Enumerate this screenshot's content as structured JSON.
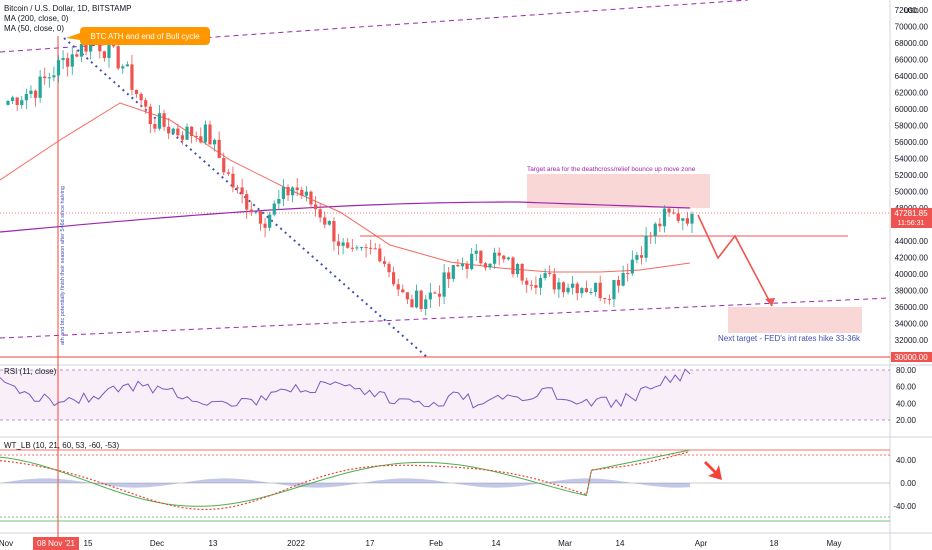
{
  "header": {
    "title": "Bitcoin / U.S. Dollar, 1D, BITSTAMP",
    "ma200": "MA (200, close, 0)",
    "ma50": "MA (50, close, 0)"
  },
  "price_axis": {
    "currency": "USD",
    "ticks": [
      "72000.00",
      "70000.00",
      "68000.00",
      "66000.00",
      "64000.00",
      "62000.00",
      "60000.00",
      "58000.00",
      "56000.00",
      "54000.00",
      "52000.00",
      "50000.00",
      "48000.00",
      "46000.00",
      "44000.00",
      "42000.00",
      "40000.00",
      "38000.00",
      "36000.00",
      "34000.00",
      "32000.00"
    ],
    "current_price": "47281.85",
    "countdown": "11:56:31",
    "level_label": "30000.00"
  },
  "time_axis": {
    "ticks": [
      "Nov",
      "15",
      "Dec",
      "13",
      "2022",
      "17",
      "Feb",
      "14",
      "Mar",
      "14",
      "Apr",
      "18",
      "May"
    ],
    "highlight": "08 Nov '21"
  },
  "annotations": {
    "ath_callout": "BTC ATH and end of Bull cycle",
    "target_zone": "Target area for the deathcross/relief bounce up move zone",
    "next_target": "Next target - FED's int rates hike 33-36k",
    "vertical_note": "ath and btc potentially finish their season after 546d since halving"
  },
  "rsi": {
    "title": "RSI (11, close)",
    "ticks": [
      "80.00",
      "60.00",
      "40.00",
      "20.00"
    ]
  },
  "wt": {
    "title": "WT_LB (10, 21, 60, 53, -60, -53)",
    "ticks": [
      "40.00",
      "0.00",
      "-40.00"
    ]
  },
  "colors": {
    "up": "#26a69a",
    "down": "#ef5350",
    "ma200": "#9c27b0",
    "ma50": "#f44336",
    "trend": "#3f51b5",
    "callout": "#ff9800",
    "zone": "#f8c6c6"
  },
  "chart_data": {
    "type": "candlestick",
    "title": "Bitcoin / U.S. Dollar, 1D, BITSTAMP",
    "ylim": [
      29000,
      73000
    ],
    "weekly_closes": [
      {
        "period": "Nov-08",
        "close": 65500
      },
      {
        "period": "Nov-15",
        "close": 58700
      },
      {
        "period": "Nov-22",
        "close": 57200
      },
      {
        "period": "Nov-29",
        "close": 57000
      },
      {
        "period": "Dec-06",
        "close": 50000
      },
      {
        "period": "Dec-13",
        "close": 46700
      },
      {
        "period": "Dec-20",
        "close": 50700
      },
      {
        "period": "Dec-27",
        "close": 47300
      },
      {
        "period": "Jan-03",
        "close": 41800
      },
      {
        "period": "Jan-10",
        "close": 43100
      },
      {
        "period": "Jan-17",
        "close": 36300
      },
      {
        "period": "Jan-24",
        "close": 37800
      },
      {
        "period": "Jan-31",
        "close": 41500
      },
      {
        "period": "Feb-07",
        "close": 42200
      },
      {
        "period": "Feb-14",
        "close": 40100
      },
      {
        "period": "Feb-21",
        "close": 39100
      },
      {
        "period": "Feb-28",
        "close": 38800
      },
      {
        "period": "Mar-07",
        "close": 37800
      },
      {
        "period": "Mar-14",
        "close": 42200
      },
      {
        "period": "Mar-21",
        "close": 46800
      },
      {
        "period": "Mar-28",
        "close": 47281.85
      }
    ],
    "levels": [
      {
        "name": "support",
        "value": 30000
      }
    ],
    "zones": [
      {
        "label": "Target area for the deathcross/relief bounce up move zone",
        "from": 48000,
        "to": 52000
      },
      {
        "label": "Next target - FED's int rates hike 33-36k",
        "from": 33000,
        "to": 36000
      }
    ]
  }
}
